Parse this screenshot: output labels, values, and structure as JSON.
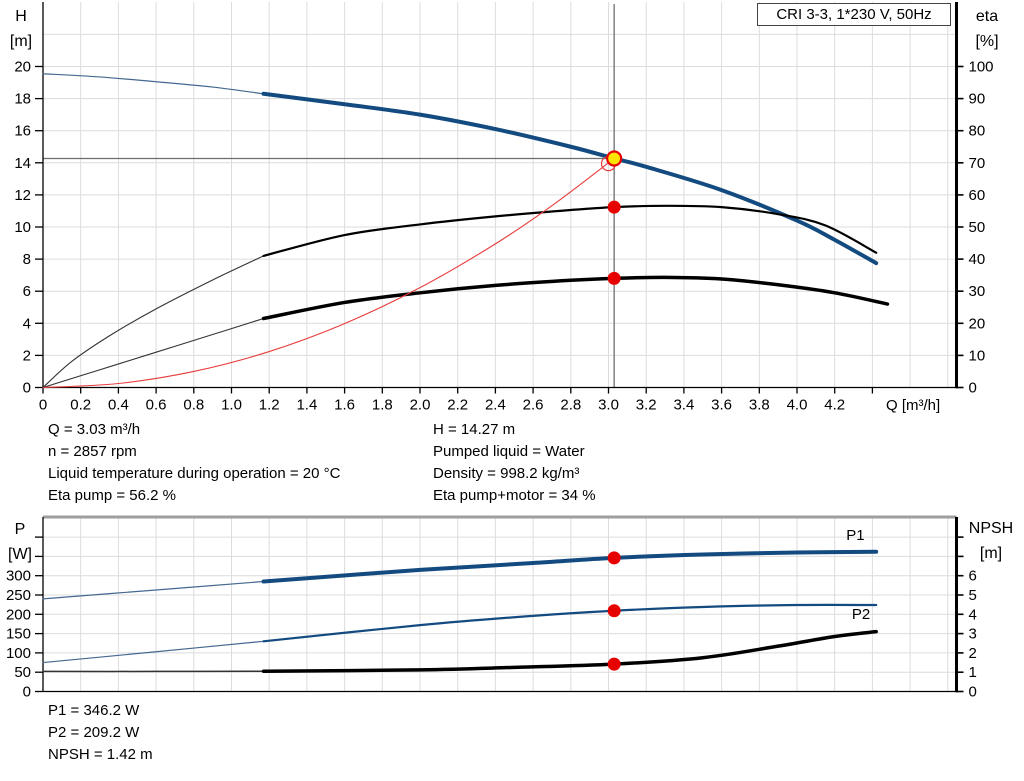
{
  "title_box": {
    "text": "CRI 3-3, 1*230 V, 50Hz"
  },
  "readouts": {
    "top_left": [
      "Q = 3.03 m³/h",
      "n = 2857 rpm",
      "Liquid temperature during operation = 20 °C",
      "Eta pump = 56.2 %"
    ],
    "top_right": [
      "H = 14.27 m",
      "Pumped liquid = Water",
      "Density = 998.2 kg/m³",
      "Eta pump+motor = 34 %"
    ],
    "bottom": [
      "P1 = 346.2 W",
      "P2 = 209.2 W",
      "NPSH = 1.42 m"
    ]
  },
  "colors": {
    "curve_blue": "#134b80",
    "curve_thin_blue": "#44688f",
    "curve_black": "#000000",
    "curve_thin_black": "#333333",
    "system_red": "#e83c3c",
    "marker_red": "#e60000",
    "marker_yellow": "#ffe400",
    "grid": "#dcdcdc",
    "crosshair": "#6e6e6e",
    "top_border_gray": "#9e9e9e"
  },
  "chart_data": [
    {
      "type": "line",
      "name": "qh-eta-chart",
      "left_axis": {
        "label": "H",
        "unit": "[m]",
        "range": [
          0,
          20
        ],
        "grid_step": 2,
        "tick_values": [
          0,
          2,
          4,
          6,
          8,
          10,
          12,
          14,
          16,
          18,
          20
        ],
        "tick_labels": [
          "0",
          "2",
          "4",
          "6",
          "8",
          "10",
          "12",
          "14",
          "16",
          "18",
          "20"
        ]
      },
      "right_axis": {
        "label": "eta",
        "unit": "[%]",
        "range": [
          0,
          100
        ],
        "tick_values": [
          0,
          10,
          20,
          30,
          40,
          50,
          60,
          70,
          80,
          90,
          100
        ],
        "tick_labels": [
          "0",
          "10",
          "20",
          "30",
          "40",
          "50",
          "60",
          "70",
          "80",
          "90",
          "100"
        ]
      },
      "x_axis": {
        "label": "Q [m³/h]",
        "range": [
          0,
          4.85
        ],
        "tick_values": [
          0,
          0.2,
          0.4,
          0.6,
          0.8,
          1,
          1.2,
          1.4,
          1.6,
          1.8,
          2,
          2.2,
          2.4,
          2.6,
          2.8,
          3,
          3.2,
          3.4,
          3.6,
          3.8,
          4,
          4.2,
          4.4
        ],
        "tick_labels": [
          "0",
          "0.2",
          "0.4",
          "0.6",
          "0.8",
          "1.0",
          "1.2",
          "1.4",
          "1.6",
          "1.8",
          "2.0",
          "2.2",
          "2.4",
          "2.6",
          "2.8",
          "3.0",
          "3.2",
          "3.4",
          "3.6",
          "3.8",
          "4.0",
          "4.2",
          ""
        ]
      },
      "crosshair": {
        "q": 3.03,
        "value": 14.27,
        "axis": "left"
      },
      "series": [
        {
          "name": "h-curve-extension",
          "axis": "left",
          "color_key": "curve_thin_blue",
          "width": 1.2,
          "points": [
            [
              0,
              19.55
            ],
            [
              0.3,
              19.35
            ],
            [
              0.6,
              19.05
            ],
            [
              0.9,
              18.72
            ],
            [
              1.17,
              18.3
            ]
          ]
        },
        {
          "name": "h-curve",
          "axis": "left",
          "color_key": "curve_blue",
          "width": 4,
          "points": [
            [
              1.17,
              18.3
            ],
            [
              1.6,
              17.65
            ],
            [
              2.0,
              17.0
            ],
            [
              2.4,
              16.1
            ],
            [
              2.8,
              15.0
            ],
            [
              3.03,
              14.27
            ],
            [
              3.2,
              13.75
            ],
            [
              3.6,
              12.3
            ],
            [
              4.0,
              10.4
            ],
            [
              4.2,
              9.2
            ],
            [
              4.42,
              7.75
            ]
          ]
        },
        {
          "name": "eta-pump-extension",
          "axis": "right",
          "color_key": "curve_thin_black",
          "width": 1.1,
          "points": [
            [
              0,
              0
            ],
            [
              0.15,
              8
            ],
            [
              0.35,
              16
            ],
            [
              0.6,
              24.5
            ],
            [
              0.9,
              33.5
            ],
            [
              1.17,
              41
            ]
          ]
        },
        {
          "name": "eta-pump-curve",
          "axis": "right",
          "color_key": "curve_black",
          "width": 2.2,
          "points": [
            [
              1.17,
              41
            ],
            [
              1.6,
              47.5
            ],
            [
              2.0,
              50.8
            ],
            [
              2.4,
              53.3
            ],
            [
              2.8,
              55.3
            ],
            [
              3.03,
              56.2
            ],
            [
              3.3,
              56.6
            ],
            [
              3.6,
              56.2
            ],
            [
              3.9,
              54
            ],
            [
              4.15,
              50.5
            ],
            [
              4.42,
              42
            ]
          ]
        },
        {
          "name": "eta-pump-motor-extension",
          "axis": "right",
          "color_key": "curve_thin_black",
          "width": 1.1,
          "points": [
            [
              0,
              0
            ],
            [
              0.3,
              5.5
            ],
            [
              0.6,
              11
            ],
            [
              0.9,
              16.5
            ],
            [
              1.17,
              21.5
            ]
          ]
        },
        {
          "name": "eta-pump-motor-curve",
          "axis": "right",
          "color_key": "curve_black",
          "width": 3.5,
          "points": [
            [
              1.17,
              21.5
            ],
            [
              1.6,
              26.5
            ],
            [
              2.0,
              29.5
            ],
            [
              2.4,
              31.8
            ],
            [
              2.8,
              33.4
            ],
            [
              3.03,
              34
            ],
            [
              3.3,
              34.3
            ],
            [
              3.6,
              33.8
            ],
            [
              3.9,
              32
            ],
            [
              4.2,
              29.5
            ],
            [
              4.48,
              26
            ]
          ]
        },
        {
          "name": "system-curve",
          "axis": "left",
          "color_key": "system_red",
          "width": 1.1,
          "points": [
            [
              0,
              0
            ],
            [
              0.4,
              0.25
            ],
            [
              0.8,
              1.0
            ],
            [
              1.2,
              2.24
            ],
            [
              1.6,
              3.98
            ],
            [
              2.0,
              6.22
            ],
            [
              2.4,
              8.95
            ],
            [
              2.7,
              11.33
            ],
            [
              3.03,
              14.27
            ]
          ]
        }
      ],
      "markers": [
        {
          "name": "duty-ring",
          "type": "ring",
          "axis": "left",
          "q": 3.0,
          "value": 13.95,
          "r": 7,
          "stroke_key": "system_red",
          "stroke_width": 1.2
        },
        {
          "name": "duty-point",
          "type": "dot",
          "axis": "left",
          "q": 3.03,
          "value": 14.27,
          "r": 7,
          "fill_key": "marker_yellow",
          "stroke_key": "marker_red",
          "stroke_width": 2.2
        },
        {
          "name": "eta-pump-point",
          "type": "dot",
          "axis": "right",
          "q": 3.03,
          "value": 56.2,
          "r": 6.5,
          "fill_key": "marker_red"
        },
        {
          "name": "eta-pump-motor-point",
          "type": "dot",
          "axis": "right",
          "q": 3.03,
          "value": 34,
          "r": 6.5,
          "fill_key": "marker_red"
        }
      ],
      "annotations": []
    },
    {
      "type": "line",
      "name": "power-npsh-chart",
      "left_axis": {
        "label": "P",
        "unit": "[W]",
        "range": [
          0,
          450
        ],
        "grid_step": 50,
        "tick_values": [
          0,
          50,
          100,
          150,
          200,
          250,
          300,
          350,
          400
        ],
        "tick_labels": [
          "0",
          "50",
          "100",
          "150",
          "200",
          "250",
          "300",
          "",
          ""
        ]
      },
      "right_axis": {
        "label": "NPSH",
        "unit": "[m]",
        "range": [
          0,
          9
        ],
        "tick_values": [
          0,
          1,
          2,
          3,
          4,
          5,
          6,
          7,
          8
        ],
        "tick_labels": [
          "0",
          "1",
          "2",
          "3",
          "4",
          "5",
          "6",
          "",
          ""
        ]
      },
      "x_axis": {
        "label": "",
        "range": [
          0,
          4.85
        ],
        "tick_values": [],
        "tick_labels": []
      },
      "crosshair": null,
      "series": [
        {
          "name": "p1-curve-extension",
          "axis": "left",
          "color_key": "curve_thin_blue",
          "width": 1.2,
          "points": [
            [
              0,
              240
            ],
            [
              0.6,
              263
            ],
            [
              1.17,
              285
            ]
          ]
        },
        {
          "name": "p1-curve",
          "axis": "left",
          "color_key": "curve_blue",
          "width": 4,
          "points": [
            [
              1.17,
              285
            ],
            [
              2.0,
              315
            ],
            [
              2.6,
              333
            ],
            [
              3.03,
              346.2
            ],
            [
              3.5,
              355
            ],
            [
              4.0,
              360
            ],
            [
              4.42,
              362
            ]
          ]
        },
        {
          "name": "p2-curve-extension",
          "axis": "left",
          "color_key": "curve_thin_blue",
          "width": 1.2,
          "points": [
            [
              0,
              75
            ],
            [
              0.6,
              103
            ],
            [
              1.17,
              130
            ]
          ]
        },
        {
          "name": "p2-curve",
          "axis": "left",
          "color_key": "curve_blue",
          "width": 2.2,
          "points": [
            [
              1.17,
              130
            ],
            [
              2.0,
              172
            ],
            [
              2.6,
              196
            ],
            [
              3.03,
              209.2
            ],
            [
              3.5,
              219
            ],
            [
              4.0,
              224
            ],
            [
              4.42,
              224
            ]
          ]
        },
        {
          "name": "npsh-curve-extension",
          "axis": "right",
          "color_key": "curve_thin_black",
          "width": 1.5,
          "points": [
            [
              0,
              1.04
            ],
            [
              0.6,
              1.04
            ],
            [
              1.17,
              1.05
            ]
          ]
        },
        {
          "name": "npsh-curve",
          "axis": "right",
          "color_key": "curve_black",
          "width": 3.5,
          "points": [
            [
              1.17,
              1.05
            ],
            [
              2.0,
              1.12
            ],
            [
              2.5,
              1.25
            ],
            [
              3.03,
              1.42
            ],
            [
              3.5,
              1.75
            ],
            [
              3.9,
              2.35
            ],
            [
              4.2,
              2.85
            ],
            [
              4.42,
              3.1
            ]
          ]
        }
      ],
      "markers": [
        {
          "name": "p1-point",
          "type": "dot",
          "axis": "left",
          "q": 3.03,
          "value": 346.2,
          "r": 6.5,
          "fill_key": "marker_red"
        },
        {
          "name": "p2-point",
          "type": "dot",
          "axis": "left",
          "q": 3.03,
          "value": 209.2,
          "r": 6.5,
          "fill_key": "marker_red"
        },
        {
          "name": "npsh-point",
          "type": "dot",
          "axis": "right",
          "q": 3.03,
          "value": 1.42,
          "r": 6.5,
          "fill_key": "marker_red"
        }
      ],
      "annotations": [
        {
          "name": "p1-label",
          "text": "P1",
          "axis": "left",
          "q": 4.31,
          "value": 392,
          "color_key": "curve_blue"
        },
        {
          "name": "p2-label",
          "text": "P2",
          "axis": "left",
          "q": 4.34,
          "value": 188,
          "color_key": "curve_blue"
        }
      ]
    }
  ]
}
